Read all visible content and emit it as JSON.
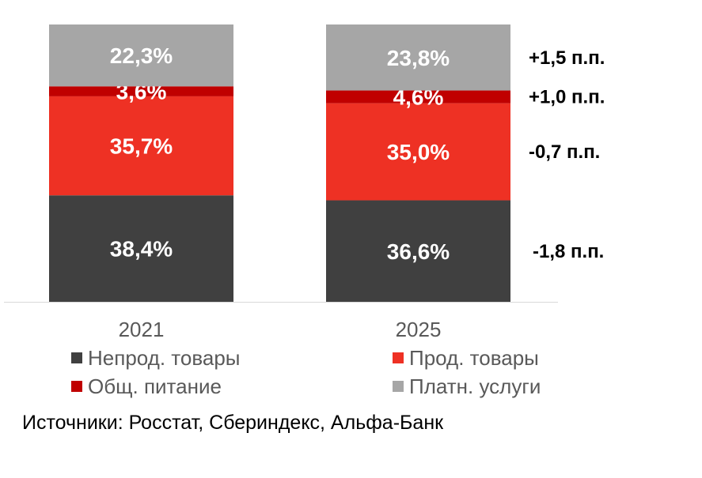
{
  "chart_data": {
    "type": "bar",
    "stacked": true,
    "percent_stacked": true,
    "categories": [
      "2021",
      "2025"
    ],
    "series": [
      {
        "name": "Непрод. товары",
        "values": [
          38.4,
          36.6
        ],
        "labels": [
          "38,4%",
          "36,6%"
        ],
        "color": "#404040"
      },
      {
        "name": "Прод. товары",
        "values": [
          35.7,
          35.0
        ],
        "labels": [
          "35,7%",
          "35,0%"
        ],
        "color": "#ee3124"
      },
      {
        "name": "Общ. питание",
        "values": [
          3.6,
          4.6
        ],
        "labels": [
          "3,6%",
          "4,6%"
        ],
        "color": "#c00000"
      },
      {
        "name": "Платн. услуги",
        "values": [
          22.3,
          23.8
        ],
        "labels": [
          "22,3%",
          "23,8%"
        ],
        "color": "#a6a6a6"
      }
    ],
    "changes": [
      "-1,8 п.п.",
      "-0,7 п.п.",
      "+1,0 п.п.",
      "+1,5 п.п."
    ],
    "ylim": [
      0,
      100
    ],
    "grid": false,
    "legend_position": "bottom",
    "legend_order": [
      0,
      1,
      2,
      3
    ]
  },
  "source": "Источники: Росстат, Сбериндекс, Альфа-Банк"
}
